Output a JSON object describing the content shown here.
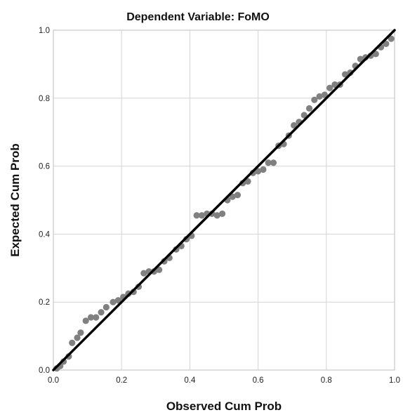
{
  "chart_data": {
    "type": "scatter",
    "title": "Dependent Variable: FoMO",
    "xlabel": "Observed Cum Prob",
    "ylabel": "Expected Cum Prob",
    "xlim": [
      0.0,
      1.0
    ],
    "ylim": [
      0.0,
      1.0
    ],
    "xticks": [
      {
        "value": 0.0,
        "label": "0.0"
      },
      {
        "value": 0.2,
        "label": "0.2"
      },
      {
        "value": 0.4,
        "label": "0.4"
      },
      {
        "value": 0.6,
        "label": "0.6"
      },
      {
        "value": 0.8,
        "label": "0.8"
      },
      {
        "value": 1.0,
        "label": "1.0"
      }
    ],
    "yticks": [
      {
        "value": 0.0,
        "label": "0.0"
      },
      {
        "value": 0.2,
        "label": "0.2"
      },
      {
        "value": 0.4,
        "label": "0.4"
      },
      {
        "value": 0.6,
        "label": "0.6"
      },
      {
        "value": 0.8,
        "label": "0.8"
      },
      {
        "value": 1.0,
        "label": "1.0"
      }
    ],
    "grid": true,
    "legend": "none",
    "colors": {
      "points": "#808080",
      "reference_line": "#000000",
      "grid": "#d4d4d4",
      "frame": "#bdbdbd"
    },
    "reference_line": {
      "from": [
        0.0,
        0.0
      ],
      "to": [
        1.0,
        1.0
      ]
    },
    "series": [
      {
        "points": [
          [
            0.01,
            0.005
          ],
          [
            0.02,
            0.012
          ],
          [
            0.03,
            0.025
          ],
          [
            0.045,
            0.04
          ],
          [
            0.055,
            0.08
          ],
          [
            0.07,
            0.095
          ],
          [
            0.08,
            0.11
          ],
          [
            0.095,
            0.145
          ],
          [
            0.11,
            0.155
          ],
          [
            0.125,
            0.155
          ],
          [
            0.14,
            0.17
          ],
          [
            0.155,
            0.185
          ],
          [
            0.175,
            0.2
          ],
          [
            0.19,
            0.205
          ],
          [
            0.205,
            0.215
          ],
          [
            0.22,
            0.225
          ],
          [
            0.235,
            0.23
          ],
          [
            0.25,
            0.245
          ],
          [
            0.265,
            0.285
          ],
          [
            0.28,
            0.29
          ],
          [
            0.295,
            0.29
          ],
          [
            0.31,
            0.295
          ],
          [
            0.325,
            0.32
          ],
          [
            0.34,
            0.33
          ],
          [
            0.36,
            0.355
          ],
          [
            0.375,
            0.365
          ],
          [
            0.39,
            0.385
          ],
          [
            0.405,
            0.395
          ],
          [
            0.42,
            0.455
          ],
          [
            0.435,
            0.455
          ],
          [
            0.45,
            0.46
          ],
          [
            0.465,
            0.46
          ],
          [
            0.48,
            0.455
          ],
          [
            0.495,
            0.46
          ],
          [
            0.51,
            0.5
          ],
          [
            0.525,
            0.51
          ],
          [
            0.54,
            0.515
          ],
          [
            0.555,
            0.55
          ],
          [
            0.57,
            0.555
          ],
          [
            0.585,
            0.58
          ],
          [
            0.6,
            0.585
          ],
          [
            0.615,
            0.59
          ],
          [
            0.63,
            0.61
          ],
          [
            0.645,
            0.61
          ],
          [
            0.66,
            0.66
          ],
          [
            0.675,
            0.665
          ],
          [
            0.69,
            0.69
          ],
          [
            0.705,
            0.72
          ],
          [
            0.72,
            0.73
          ],
          [
            0.735,
            0.75
          ],
          [
            0.75,
            0.77
          ],
          [
            0.765,
            0.795
          ],
          [
            0.78,
            0.805
          ],
          [
            0.795,
            0.81
          ],
          [
            0.81,
            0.83
          ],
          [
            0.825,
            0.84
          ],
          [
            0.84,
            0.84
          ],
          [
            0.855,
            0.87
          ],
          [
            0.87,
            0.875
          ],
          [
            0.885,
            0.895
          ],
          [
            0.9,
            0.915
          ],
          [
            0.915,
            0.92
          ],
          [
            0.93,
            0.925
          ],
          [
            0.945,
            0.93
          ],
          [
            0.96,
            0.95
          ],
          [
            0.975,
            0.96
          ],
          [
            0.99,
            0.975
          ]
        ]
      }
    ]
  }
}
